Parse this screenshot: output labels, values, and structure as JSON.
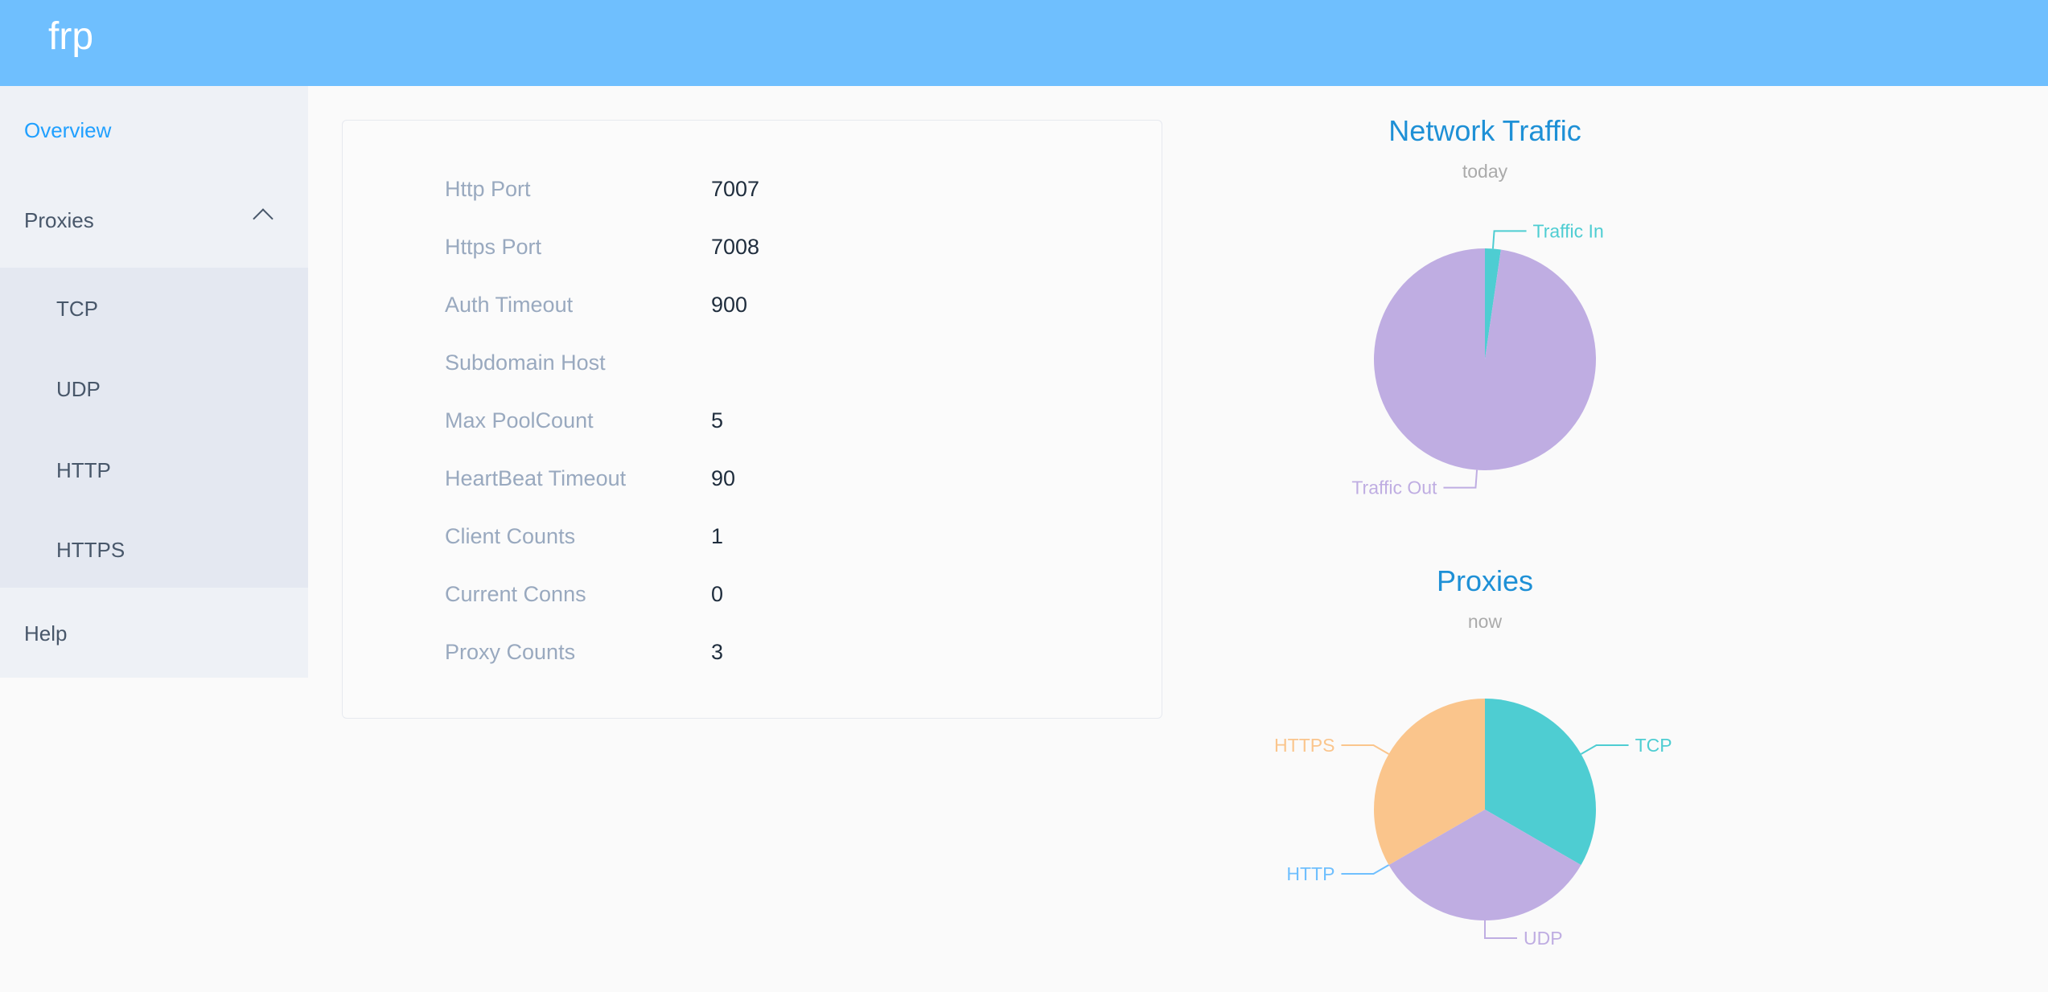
{
  "header": {
    "title": "frp",
    "color": "#6fbffe"
  },
  "sidebar": {
    "items": [
      {
        "label": "Overview",
        "active": true
      },
      {
        "label": "Proxies",
        "expanded": true,
        "children": [
          "TCP",
          "UDP",
          "HTTP",
          "HTTPS"
        ]
      },
      {
        "label": "Help"
      }
    ]
  },
  "server_info": [
    {
      "label": "Http Port",
      "value": "7007"
    },
    {
      "label": "Https Port",
      "value": "7008"
    },
    {
      "label": "Auth Timeout",
      "value": "900"
    },
    {
      "label": "Subdomain Host",
      "value": ""
    },
    {
      "label": "Max PoolCount",
      "value": "5"
    },
    {
      "label": "HeartBeat Timeout",
      "value": "90"
    },
    {
      "label": "Client Counts",
      "value": "1"
    },
    {
      "label": "Current Conns",
      "value": "0"
    },
    {
      "label": "Proxy Counts",
      "value": "3"
    }
  ],
  "chart_data": [
    {
      "type": "pie",
      "title": "Network Traffic",
      "subtitle": "today",
      "series": [
        {
          "name": "Traffic In",
          "value": 2.3,
          "color": "#4ecdd2"
        },
        {
          "name": "Traffic Out",
          "value": 97.7,
          "color": "#bfadE2"
        }
      ]
    },
    {
      "type": "pie",
      "title": "Proxies",
      "subtitle": "now",
      "series": [
        {
          "name": "TCP",
          "value": 1,
          "color": "#4ecdd2"
        },
        {
          "name": "UDP",
          "value": 1,
          "color": "#bfade2"
        },
        {
          "name": "HTTP",
          "value": 0,
          "color": "#6fbffe"
        },
        {
          "name": "HTTPS",
          "value": 1,
          "color": "#fac58c"
        }
      ]
    }
  ]
}
